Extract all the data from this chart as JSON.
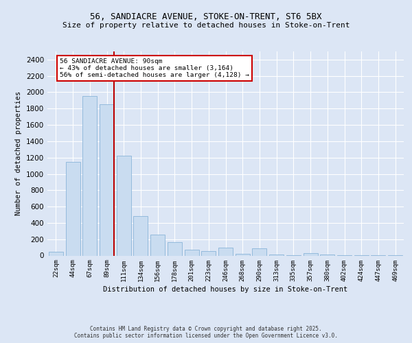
{
  "title_line1": "56, SANDIACRE AVENUE, STOKE-ON-TRENT, ST6 5BX",
  "title_line2": "Size of property relative to detached houses in Stoke-on-Trent",
  "xlabel": "Distribution of detached houses by size in Stoke-on-Trent",
  "ylabel": "Number of detached properties",
  "categories": [
    "22sqm",
    "44sqm",
    "67sqm",
    "89sqm",
    "111sqm",
    "134sqm",
    "156sqm",
    "178sqm",
    "201sqm",
    "223sqm",
    "246sqm",
    "268sqm",
    "290sqm",
    "313sqm",
    "335sqm",
    "357sqm",
    "380sqm",
    "402sqm",
    "424sqm",
    "447sqm",
    "469sqm"
  ],
  "values": [
    50,
    1150,
    1950,
    1850,
    1220,
    480,
    260,
    165,
    75,
    55,
    100,
    20,
    85,
    15,
    5,
    30,
    10,
    5,
    5,
    2,
    2
  ],
  "bar_color": "#c9dcf0",
  "bar_edge_color": "#8ab4d8",
  "vline_color": "#bb0000",
  "vline_pos": 3.425,
  "annotation_title": "56 SANDIACRE AVENUE: 90sqm",
  "annotation_line2": "← 43% of detached houses are smaller (3,164)",
  "annotation_line3": "56% of semi-detached houses are larger (4,128) →",
  "annotation_box_edgecolor": "#cc0000",
  "ylim": [
    0,
    2500
  ],
  "yticks": [
    0,
    200,
    400,
    600,
    800,
    1000,
    1200,
    1400,
    1600,
    1800,
    2000,
    2200,
    2400
  ],
  "bg_color": "#dce6f5",
  "footer_line1": "Contains HM Land Registry data © Crown copyright and database right 2025.",
  "footer_line2": "Contains public sector information licensed under the Open Government Licence v3.0."
}
